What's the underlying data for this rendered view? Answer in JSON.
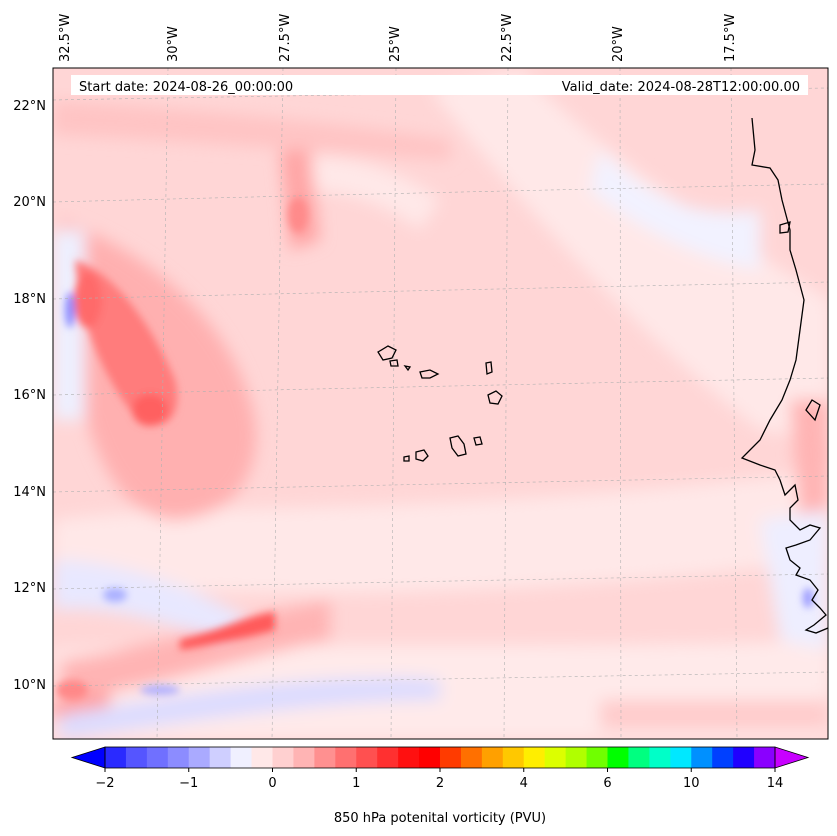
{
  "header": {
    "start_date": "Start date: 2024-08-26_00:00:00",
    "valid_date": "Valid_date: 2024-08-28T12:00:00.00"
  },
  "map": {
    "projection": "lambert-conformal",
    "lon_labels": [
      "32.5°W",
      "30°W",
      "27.5°W",
      "25°W",
      "22.5°W",
      "20°W",
      "17.5°W"
    ],
    "lat_labels": [
      "22°N",
      "20°N",
      "18°N",
      "16°N",
      "14°N",
      "12°N",
      "10°N"
    ],
    "gridlines": true,
    "gridline_style": "dashed-grey",
    "features": [
      "Cape Verde islands",
      "West African coastline (Senegal, Gambia, Guinea-Bissau)"
    ]
  },
  "colorbar": {
    "label": "850 hPa potenital vorticity (PVU)",
    "tick_labels": [
      "−2",
      "−1",
      "0",
      "1",
      "2",
      "4",
      "6",
      "10",
      "14"
    ],
    "extend": "both",
    "colors": [
      "#0000ff",
      "#2a2aff",
      "#5555ff",
      "#7070ff",
      "#8c8cff",
      "#aaaaff",
      "#cfcfff",
      "#f0f0ff",
      "#ffe8e8",
      "#ffd0d0",
      "#ffb4b4",
      "#ff9090",
      "#ff7070",
      "#ff5050",
      "#ff3030",
      "#ff1010",
      "#ff0000",
      "#ff3b00",
      "#ff7000",
      "#ffa000",
      "#ffc800",
      "#ffee00",
      "#dcff00",
      "#b0ff00",
      "#70ff00",
      "#00ff00",
      "#00ff80",
      "#00ffc8",
      "#00e8ff",
      "#0090ff",
      "#0040ff",
      "#2000ff",
      "#8a00ff",
      "#c800ff"
    ]
  },
  "chart_data": {
    "type": "heatmap",
    "variable": "850 hPa potenital vorticity (PVU)",
    "lon_range": [
      -33,
      -15
    ],
    "lat_range": [
      9,
      22.8
    ],
    "levels": [
      -2,
      -1,
      0,
      1,
      2,
      4,
      6,
      10,
      14
    ],
    "fields": [
      {
        "region": "32W-29W, 14.5N-18.5N",
        "pv_max": 1.5
      },
      {
        "region": "29W-27W, 10.5N-11.5N",
        "pv_max": 1.5
      },
      {
        "region": "28W-26.5W, 19.5N-21N",
        "pv_max": 1.0
      },
      {
        "region": "32.5W, 17.5N",
        "pv_min": -0.7
      },
      {
        "region": "31W-28W, 9.5N-12.5N",
        "pv_min": -0.5
      },
      {
        "region": "general background",
        "pv": 0.2
      }
    ]
  }
}
